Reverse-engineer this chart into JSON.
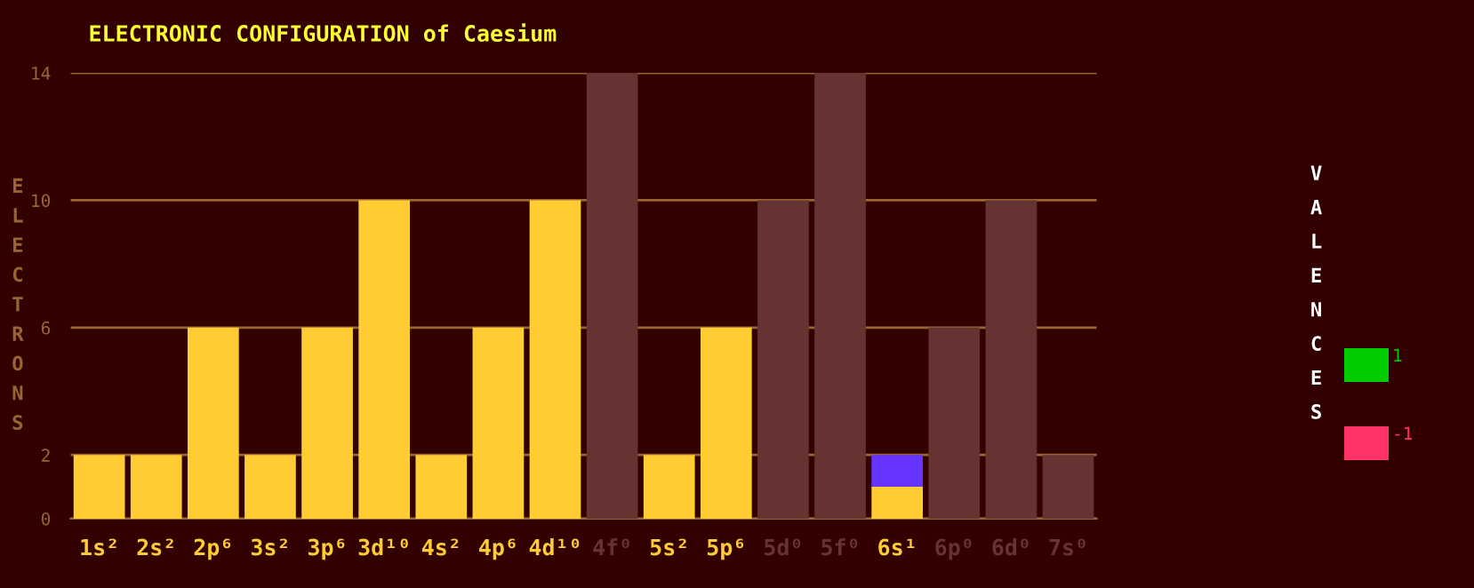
{
  "chart_data": {
    "type": "bar",
    "title": "ELECTRONIC CONFIGURATION of Caesium",
    "ylabel": "ELECTRONS",
    "annotations": [
      "VALENCES",
      "1",
      "-1"
    ],
    "stacked": true,
    "grid": "y",
    "categories": [
      "1s²",
      "2s²",
      "2p⁶",
      "3s²",
      "3p⁶",
      "3d¹⁰",
      "4s²",
      "4p⁶",
      "4d¹⁰",
      "4f⁰",
      "5s²",
      "5p⁶",
      "5d⁰",
      "5f⁰",
      "6s¹",
      "6p⁰",
      "6d⁰",
      "7s⁰"
    ],
    "series": [
      {
        "color": "#ffcc33",
        "values": [
          2,
          2,
          6,
          2,
          6,
          10,
          2,
          6,
          10,
          0,
          2,
          6,
          0,
          0,
          1,
          0,
          0,
          0
        ]
      },
      {
        "color": "#6633ff",
        "values": [
          0,
          0,
          0,
          0,
          0,
          0,
          0,
          0,
          0,
          0,
          0,
          0,
          0,
          0,
          1,
          0,
          0,
          0
        ]
      },
      {
        "color": "#663333",
        "values": [
          0,
          0,
          0,
          0,
          0,
          0,
          0,
          0,
          0,
          14,
          0,
          0,
          10,
          14,
          0,
          6,
          10,
          2
        ]
      }
    ],
    "ylim": [
      0,
      14
    ],
    "yticks": [
      0,
      2,
      6,
      10,
      14
    ]
  }
}
